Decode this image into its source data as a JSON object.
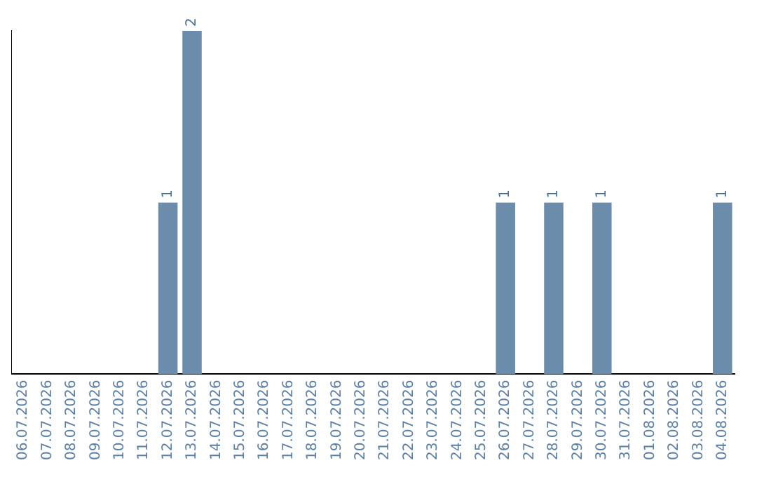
{
  "chart_data": {
    "type": "bar",
    "categories": [
      "06.07.2026",
      "07.07.2026",
      "08.07.2026",
      "09.07.2026",
      "10.07.2026",
      "11.07.2026",
      "12.07.2026",
      "13.07.2026",
      "14.07.2026",
      "15.07.2026",
      "16.07.2026",
      "17.07.2026",
      "18.07.2026",
      "19.07.2026",
      "20.07.2026",
      "21.07.2026",
      "22.07.2026",
      "23.07.2026",
      "24.07.2026",
      "25.07.2026",
      "26.07.2026",
      "27.07.2026",
      "28.07.2026",
      "29.07.2026",
      "30.07.2026",
      "31.07.2026",
      "01.08.2026",
      "02.08.2026",
      "03.08.2026",
      "04.08.2026"
    ],
    "values": [
      0,
      0,
      0,
      0,
      0,
      0,
      1,
      2,
      0,
      0,
      0,
      0,
      0,
      0,
      0,
      0,
      0,
      0,
      0,
      0,
      1,
      0,
      1,
      0,
      1,
      0,
      0,
      0,
      0,
      1
    ],
    "value_labels": [
      null,
      null,
      null,
      null,
      null,
      null,
      "1",
      "2",
      null,
      null,
      null,
      null,
      null,
      null,
      null,
      null,
      null,
      null,
      null,
      null,
      "1",
      null,
      "1",
      null,
      "1",
      null,
      null,
      null,
      null,
      "1"
    ],
    "color": "#6b8cab",
    "grid": false,
    "legend": false
  }
}
